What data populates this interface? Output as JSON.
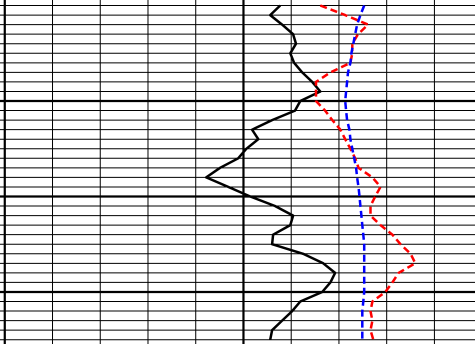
{
  "chart_data": {
    "type": "line",
    "orientation": "vertical",
    "y": [
      0,
      1,
      2,
      3,
      4,
      5,
      6,
      7,
      8,
      9,
      10,
      11,
      12,
      13,
      14,
      15,
      16,
      17,
      18,
      19,
      20,
      21,
      22,
      23,
      24,
      25,
      26,
      27,
      28,
      29,
      30,
      31,
      32,
      33,
      34,
      35
    ],
    "series": [
      {
        "color": "#000000",
        "dash": false,
        "values": [
          5.77,
          5.56,
          5.81,
          6.04,
          6.1,
          5.98,
          6.06,
          6.23,
          6.44,
          6.61,
          6.19,
          6.08,
          5.6,
          5.18,
          5.31,
          5.06,
          4.89,
          4.51,
          4.22,
          4.68,
          5.14,
          5.66,
          6.04,
          5.98,
          5.62,
          5.6,
          6.25,
          6.67,
          6.92,
          6.82,
          6.65,
          6.19,
          6.02,
          5.81,
          5.6,
          5.56
        ]
      },
      {
        "color": "#ff0000",
        "dash": true,
        "values": [
          6.61,
          7.13,
          7.61,
          7.4,
          7.28,
          7.28,
          7.24,
          6.82,
          6.52,
          6.52,
          6.52,
          6.71,
          6.86,
          7.03,
          7.13,
          7.24,
          7.34,
          7.41,
          7.7,
          7.87,
          7.76,
          7.66,
          7.66,
          7.87,
          8.12,
          8.29,
          8.5,
          8.6,
          8.25,
          8.12,
          7.97,
          7.7,
          7.66,
          7.7,
          7.66,
          7.72
        ]
      },
      {
        "color": "#0000ff",
        "dash": true,
        "values": [
          7.53,
          7.45,
          7.38,
          7.34,
          7.3,
          7.26,
          7.24,
          7.19,
          7.17,
          7.15,
          7.13,
          7.15,
          7.17,
          7.22,
          7.24,
          7.28,
          7.32,
          7.36,
          7.38,
          7.41,
          7.43,
          7.45,
          7.47,
          7.49,
          7.51,
          7.53,
          7.53,
          7.53,
          7.53,
          7.53,
          7.53,
          7.51,
          7.49,
          7.49,
          7.49,
          7.49
        ]
      }
    ],
    "xlim": [
      -0.1,
      9.85
    ],
    "ylim": [
      -0.58,
      35.45
    ],
    "xticks": [
      0,
      1,
      2,
      3,
      4,
      5,
      6,
      7,
      8,
      9
    ],
    "yticks": [
      0,
      1,
      2,
      3,
      4,
      5,
      6,
      7,
      8,
      9,
      10,
      11,
      12,
      13,
      14,
      15,
      16,
      17,
      18,
      19,
      20,
      21,
      22,
      23,
      24,
      25,
      26,
      27,
      28,
      29,
      30,
      31,
      32,
      33,
      34,
      35
    ],
    "major_xticks": [
      0,
      5
    ],
    "major_yticks": [
      10,
      20,
      30
    ],
    "grid": true
  }
}
